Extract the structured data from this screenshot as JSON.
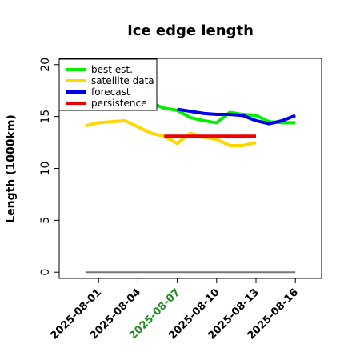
{
  "chart_data": {
    "type": "line",
    "title": "Ice edge length",
    "xlabel": "",
    "ylabel": "Length (1000km)",
    "xlim": [
      "2025-07-29",
      "2025-08-18"
    ],
    "ylim": [
      -0.6,
      20.6
    ],
    "yticks": [
      0,
      5,
      10,
      15,
      20
    ],
    "xticks": [
      {
        "date": "2025-08-01",
        "label": "2025-08-01",
        "color": "#000000"
      },
      {
        "date": "2025-08-04",
        "label": "2025-08-04",
        "color": "#000000"
      },
      {
        "date": "2025-08-07",
        "label": "2025-08-07",
        "color": "#228B22"
      },
      {
        "date": "2025-08-10",
        "label": "2025-08-10",
        "color": "#000000"
      },
      {
        "date": "2025-08-13",
        "label": "2025-08-13",
        "color": "#000000"
      },
      {
        "date": "2025-08-16",
        "label": "2025-08-16",
        "color": "#000000"
      }
    ],
    "grid": false,
    "legend_position": "top-left",
    "series": [
      {
        "name": "best est.",
        "color": "#00EE00",
        "x": [
          "2025-08-05",
          "2025-08-06",
          "2025-08-07",
          "2025-08-08",
          "2025-08-09",
          "2025-08-10",
          "2025-08-11",
          "2025-08-12",
          "2025-08-13",
          "2025-08-14",
          "2025-08-15",
          "2025-08-16"
        ],
        "y": [
          16.3,
          15.8,
          15.6,
          14.9,
          14.6,
          14.4,
          15.4,
          15.2,
          15.1,
          14.5,
          14.4,
          14.4
        ]
      },
      {
        "name": "satellite data",
        "color": "#FFD700",
        "x": [
          "2025-07-31",
          "2025-08-01",
          "2025-08-02",
          "2025-08-03",
          "2025-08-04",
          "2025-08-05",
          "2025-08-06",
          "2025-08-07",
          "2025-08-08",
          "2025-08-09",
          "2025-08-10",
          "2025-08-11",
          "2025-08-12",
          "2025-08-13"
        ],
        "y": [
          14.1,
          14.4,
          14.5,
          14.6,
          14.0,
          13.4,
          13.1,
          12.4,
          13.4,
          13.0,
          12.8,
          12.2,
          12.2,
          12.5
        ]
      },
      {
        "name": "forecast",
        "color": "#0000EE",
        "x": [
          "2025-08-07",
          "2025-08-08",
          "2025-08-09",
          "2025-08-10",
          "2025-08-11",
          "2025-08-12",
          "2025-08-13",
          "2025-08-14",
          "2025-08-15",
          "2025-08-16"
        ],
        "y": [
          15.7,
          15.5,
          15.3,
          15.2,
          15.2,
          15.1,
          14.6,
          14.3,
          14.6,
          15.1
        ]
      },
      {
        "name": "persistence",
        "color": "#EE0000",
        "x": [
          "2025-08-06",
          "2025-08-13"
        ],
        "y": [
          13.1,
          13.1
        ]
      }
    ],
    "reference_line": {
      "color": "#777777",
      "x": [
        "2025-07-31",
        "2025-08-16"
      ],
      "y": [
        0,
        0
      ]
    }
  }
}
